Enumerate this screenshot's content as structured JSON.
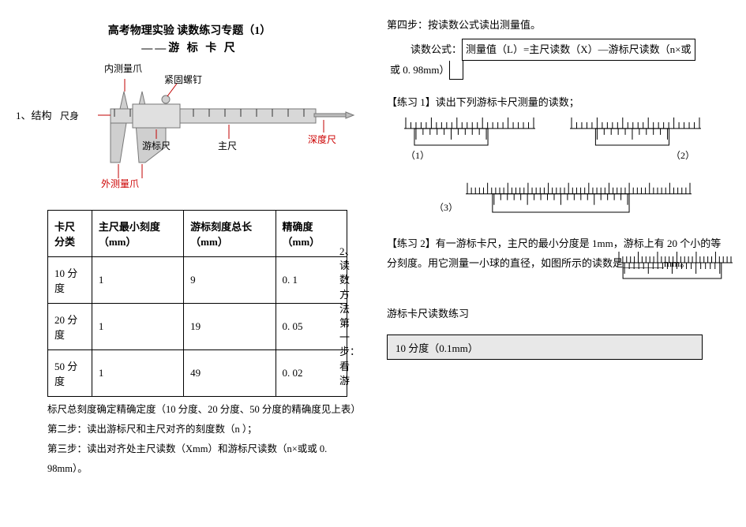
{
  "title": {
    "main": "高考物理实验 读数练习专题（1）",
    "sub": "——游 标 卡 尺"
  },
  "structure": {
    "section_label": "1、结构",
    "labels": {
      "body": "尺身",
      "inner_jaw": "内测量爪",
      "screw": "紧固螺钉",
      "vernier": "游标尺",
      "main": "主尺",
      "depth": "深度尺",
      "outer_jaw": "外测量爪"
    },
    "colors": {
      "red": "#c00000",
      "blue": "#1e5aa8",
      "grey": "#d0d0d0",
      "dark": "#707070"
    }
  },
  "table": {
    "headers": [
      "卡尺分类",
      "主尺最小刻度（mm）",
      "游标刻度总长（mm）",
      "精确度（mm）"
    ],
    "rows": [
      [
        "10 分度",
        "1",
        "9",
        "0. 1"
      ],
      [
        "20 分度",
        "1",
        "19",
        "0. 05"
      ],
      [
        "50 分度",
        "1",
        "49",
        "0. 02"
      ]
    ]
  },
  "side_vertical": "2、读数方法　第一步：看游",
  "below_table": {
    "line1": "标尺总刻度确定精确定度（10 分度、20 分度、50 分度的精确度见上表）",
    "line2": "第二步：读出游标尺和主尺对齐的刻度数（n ）；",
    "line3": "第三步：读出对齐处主尺读数（Xmm）和游标尺读数（n×或或 0. 98mm）。"
  },
  "right": {
    "step4": "第四步：按读数公式读出测量值。",
    "formula_label": "读数公式：",
    "formula_box": "测量值（L）=主尺读数（X）—游标尺读数（n×或",
    "formula_tail": "或 0. 98mm）",
    "ex1_label": "【练习 1】读出下列游标卡尺测量的读数；",
    "ex1_nums": [
      "（1）",
      "（2）",
      "（3）"
    ],
    "ex2_text1": "【练习 2】有一游标卡尺，主尺的最小分度是 1mm，游标上有 20 个小的等",
    "ex2_text2": "分刻度。用它测量一小球的直径，如图所示的读数是________mm。",
    "practice_title": "游标卡尺读数练习",
    "grey_box": "10 分度（0.1mm）"
  },
  "vernier_style": {
    "main_ticks": 26,
    "sub_ticks": 11,
    "stroke": "#000000",
    "width_small": 170,
    "width_large": 280,
    "height": 40
  }
}
